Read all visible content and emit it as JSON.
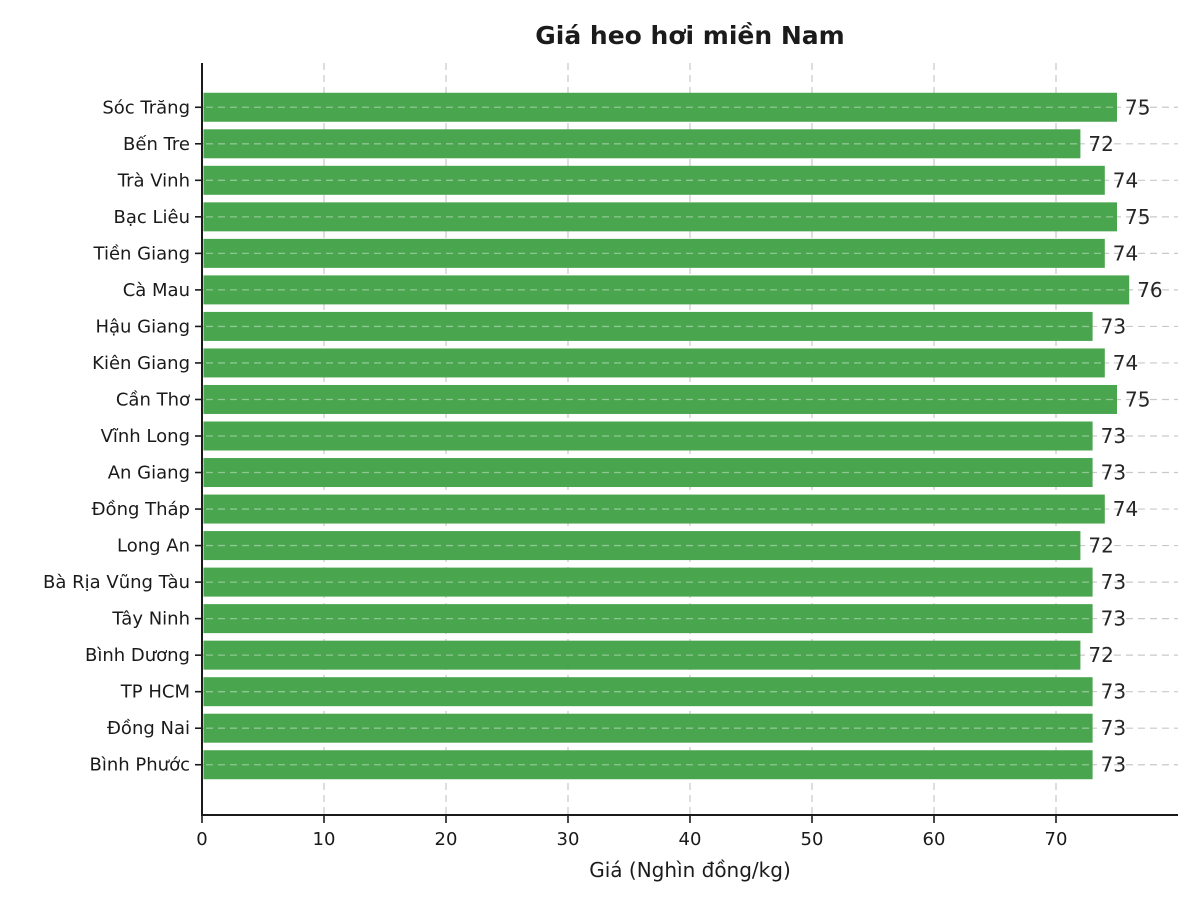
{
  "chart_data": {
    "type": "bar",
    "orientation": "horizontal",
    "title": "Giá heo hơi miền Nam",
    "xlabel": "Giá (Nghìn đồng/kg)",
    "ylabel": "",
    "categories": [
      "Sóc Trăng",
      "Bến Tre",
      "Trà Vinh",
      "Bạc Liêu",
      "Tiền Giang",
      "Cà Mau",
      "Hậu Giang",
      "Kiên Giang",
      "Cần Thơ",
      "Vĩnh Long",
      "An Giang",
      "Đồng Tháp",
      "Long An",
      "Bà Rịa Vũng Tàu",
      "Tây Ninh",
      "Bình Dương",
      "TP HCM",
      "Đồng Nai",
      "Bình Phước"
    ],
    "values": [
      75,
      72,
      74,
      75,
      74,
      76,
      73,
      74,
      75,
      73,
      73,
      74,
      72,
      73,
      73,
      72,
      73,
      73,
      73
    ],
    "value_labels": [
      75,
      72,
      74,
      75,
      74,
      76,
      73,
      74,
      75,
      73,
      73,
      74,
      72,
      73,
      73,
      72,
      73,
      73,
      73
    ],
    "xticks": [
      0,
      10,
      20,
      30,
      40,
      50,
      60,
      70
    ],
    "xlim": [
      0,
      80
    ],
    "grid": "dashed, both axes",
    "legend": "none",
    "bar_color": "#4aa54f",
    "grid_color": "#c9c9c9",
    "on_bar_dash_color": "rgba(255,255,255,0.38)",
    "axis_color": "#1a1a1a",
    "text_color": "#1a1a1a"
  }
}
